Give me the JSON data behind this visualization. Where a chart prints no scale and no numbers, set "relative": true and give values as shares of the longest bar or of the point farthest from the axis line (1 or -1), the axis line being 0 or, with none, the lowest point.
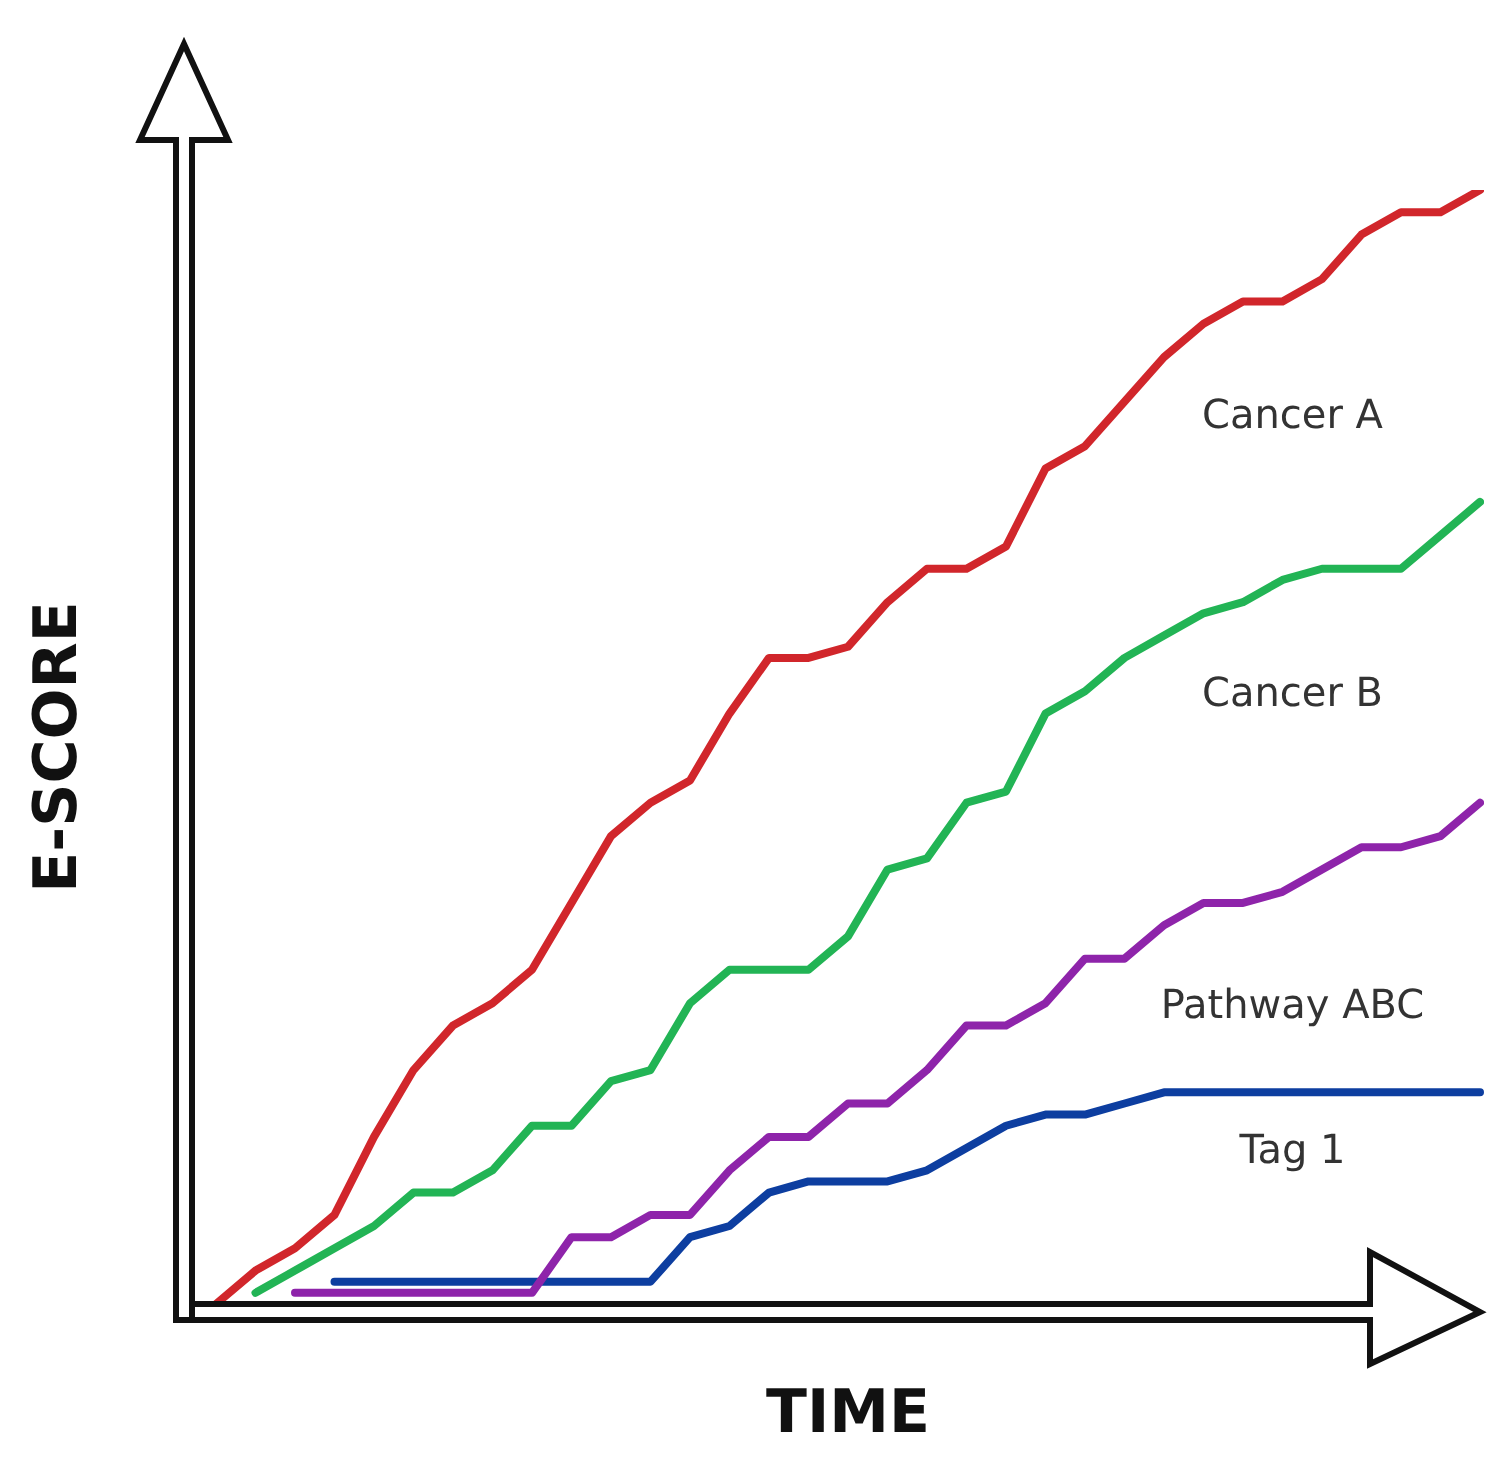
{
  "chart_data": {
    "type": "line",
    "relative": true,
    "xlabel": "TIME",
    "ylabel": "E-SCORE",
    "legend": false,
    "marker": "none",
    "categories": [
      null,
      null,
      null,
      null,
      null,
      null,
      null,
      null,
      null,
      null,
      null,
      null,
      null,
      null,
      null,
      null,
      null,
      null,
      null,
      null,
      null,
      null,
      null,
      null,
      null,
      null,
      null,
      null,
      null,
      null,
      null,
      null,
      null
    ],
    "series": [
      {
        "name": "Cancer A",
        "color": "#d1262b",
        "values": [
          0,
          0.03,
          0.05,
          0.08,
          0.15,
          0.21,
          0.25,
          0.27,
          0.3,
          0.36,
          0.42,
          0.45,
          0.47,
          0.53,
          0.58,
          0.58,
          0.59,
          0.63,
          0.66,
          0.66,
          0.68,
          0.75,
          0.77,
          0.81,
          0.85,
          0.88,
          0.9,
          0.9,
          0.92,
          0.96,
          0.98,
          0.98,
          1
        ]
      },
      {
        "name": "Cancer B",
        "color": "#22b455",
        "values": [
          null,
          0.01,
          0.03,
          0.05,
          0.07,
          0.1,
          0.1,
          0.12,
          0.16,
          0.16,
          0.2,
          0.21,
          0.27,
          0.3,
          0.3,
          0.3,
          0.33,
          0.39,
          0.4,
          0.45,
          0.46,
          0.53,
          0.55,
          0.58,
          0.6,
          0.62,
          0.63,
          0.65,
          0.66,
          0.66,
          0.66,
          0.69,
          0.72
        ]
      },
      {
        "name": "Pathway ABC",
        "color": "#8e24aa",
        "values": [
          null,
          null,
          0.01,
          0.01,
          0.01,
          0.01,
          0.01,
          0.01,
          0.01,
          0.06,
          0.06,
          0.08,
          0.08,
          0.12,
          0.15,
          0.15,
          0.18,
          0.18,
          0.21,
          0.25,
          0.25,
          0.27,
          0.31,
          0.31,
          0.34,
          0.36,
          0.36,
          0.37,
          0.39,
          0.41,
          0.41,
          0.42,
          0.45
        ]
      },
      {
        "name": "Tag 1",
        "color": "#0d3ea0",
        "values": [
          null,
          null,
          null,
          0.02,
          0.02,
          0.02,
          0.02,
          0.02,
          0.02,
          0.02,
          0.02,
          0.02,
          0.06,
          0.07,
          0.1,
          0.11,
          0.11,
          0.11,
          0.12,
          0.14,
          0.16,
          0.17,
          0.17,
          0.18,
          0.19,
          0.19,
          0.19,
          0.19,
          0.19,
          0.19,
          0.19,
          0.19,
          0.19
        ]
      }
    ]
  }
}
